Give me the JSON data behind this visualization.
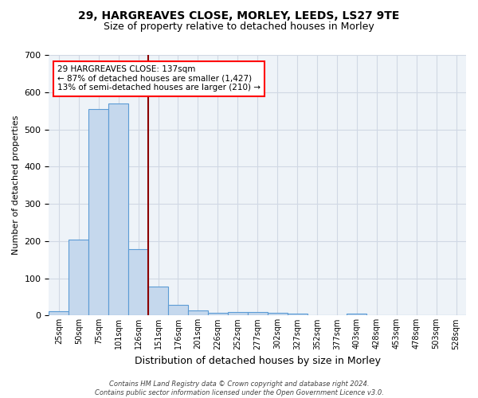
{
  "title": "29, HARGREAVES CLOSE, MORLEY, LEEDS, LS27 9TE",
  "subtitle": "Size of property relative to detached houses in Morley",
  "xlabel": "Distribution of detached houses by size in Morley",
  "ylabel": "Number of detached properties",
  "bar_values": [
    12,
    205,
    555,
    570,
    178,
    78,
    28,
    14,
    8,
    10,
    10,
    8,
    5,
    0,
    0,
    6,
    0,
    0,
    0,
    0,
    0
  ],
  "bin_labels": [
    "25sqm",
    "50sqm",
    "75sqm",
    "101sqm",
    "126sqm",
    "151sqm",
    "176sqm",
    "201sqm",
    "226sqm",
    "252sqm",
    "277sqm",
    "302sqm",
    "327sqm",
    "352sqm",
    "377sqm",
    "403sqm",
    "428sqm",
    "453sqm",
    "478sqm",
    "503sqm",
    "528sqm"
  ],
  "bar_color": "#c5d8ed",
  "bar_edge_color": "#5b9bd5",
  "grid_color": "#d0d8e4",
  "background_color": "#eef3f8",
  "vline_x_index": 4,
  "vline_color": "#8b0000",
  "annotation_text": "29 HARGREAVES CLOSE: 137sqm\n← 87% of detached houses are smaller (1,427)\n13% of semi-detached houses are larger (210) →",
  "annotation_box_color": "white",
  "annotation_box_edge_color": "red",
  "footer": "Contains HM Land Registry data © Crown copyright and database right 2024.\nContains public sector information licensed under the Open Government Licence v3.0.",
  "ylim": [
    0,
    700
  ],
  "yticks": [
    0,
    100,
    200,
    300,
    400,
    500,
    600,
    700
  ]
}
